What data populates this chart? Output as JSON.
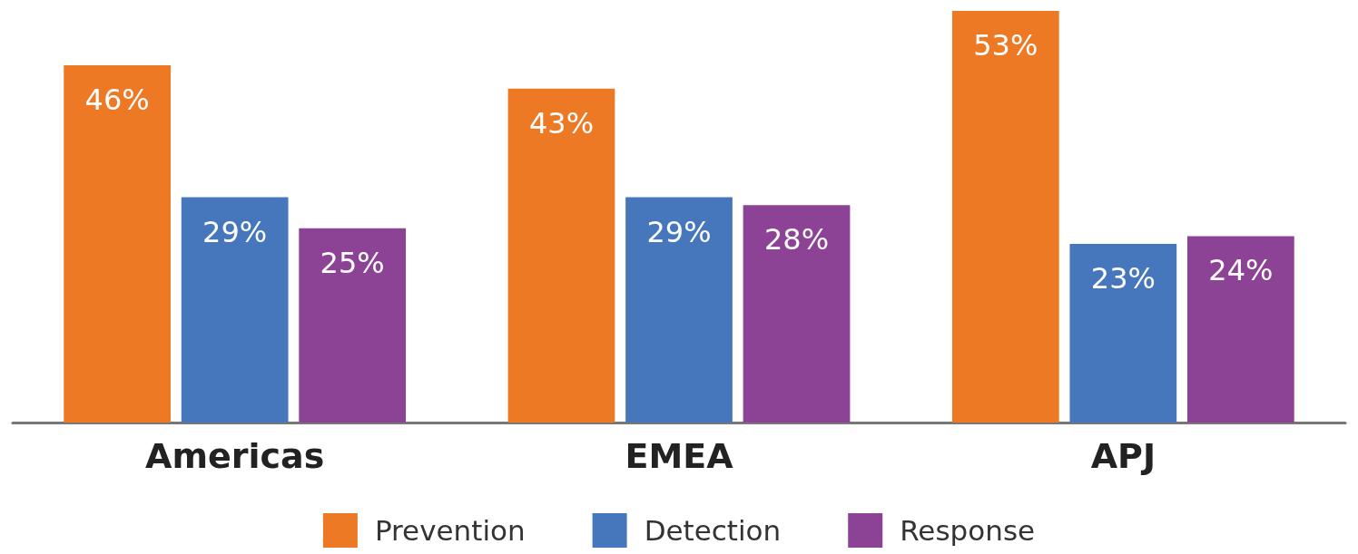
{
  "chart_data": {
    "type": "bar",
    "categories": [
      "Americas",
      "EMEA",
      "APJ"
    ],
    "series": [
      {
        "name": "Prevention",
        "color": "#ee7925",
        "values": [
          46,
          43,
          53
        ],
        "value_labels": [
          "46%",
          "43%",
          "53%"
        ]
      },
      {
        "name": "Detection",
        "color": "#4677bc",
        "values": [
          29,
          29,
          23
        ],
        "value_labels": [
          "29%",
          "29%",
          "23%"
        ]
      },
      {
        "name": "Response",
        "color": "#8c4396",
        "values": [
          25,
          28,
          24
        ],
        "value_labels": [
          "25%",
          "28%",
          "24%"
        ]
      }
    ],
    "legend": "bottom"
  }
}
